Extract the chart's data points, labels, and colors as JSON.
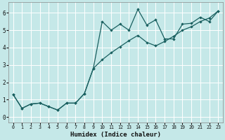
{
  "xlabel": "Humidex (Indice chaleur)",
  "bg_color": "#c5e8e8",
  "line_color": "#1a6060",
  "grid_color": "#ffffff",
  "xlim": [
    -0.5,
    23.5
  ],
  "ylim": [
    -0.3,
    6.6
  ],
  "xticks": [
    0,
    1,
    2,
    3,
    4,
    5,
    6,
    7,
    8,
    9,
    10,
    11,
    12,
    13,
    14,
    15,
    16,
    17,
    18,
    19,
    20,
    21,
    22,
    23
  ],
  "yticks": [
    0,
    1,
    2,
    3,
    4,
    5,
    6
  ],
  "curve1_x": [
    0,
    1,
    2,
    3,
    4,
    5,
    6,
    7,
    8,
    9,
    10,
    11,
    12,
    13,
    14,
    15,
    16,
    17,
    18,
    19,
    20,
    21,
    22,
    23
  ],
  "curve1_y": [
    1.3,
    0.5,
    0.75,
    0.8,
    0.6,
    0.4,
    0.8,
    0.8,
    1.35,
    2.8,
    5.5,
    5.0,
    5.35,
    5.0,
    6.2,
    5.3,
    5.6,
    4.5,
    4.5,
    5.35,
    5.4,
    5.75,
    5.5,
    6.1
  ],
  "curve2_x": [
    0,
    1,
    2,
    3,
    4,
    5,
    6,
    7,
    8,
    9,
    10,
    11,
    12,
    13,
    14,
    15,
    16,
    17,
    18,
    19,
    20,
    21,
    22,
    23
  ],
  "curve2_y": [
    1.3,
    0.5,
    0.75,
    0.8,
    0.6,
    0.4,
    0.8,
    0.8,
    1.35,
    2.8,
    3.3,
    3.7,
    4.05,
    4.4,
    4.7,
    4.3,
    4.1,
    4.35,
    4.65,
    5.0,
    5.2,
    5.5,
    5.7,
    6.1
  ]
}
